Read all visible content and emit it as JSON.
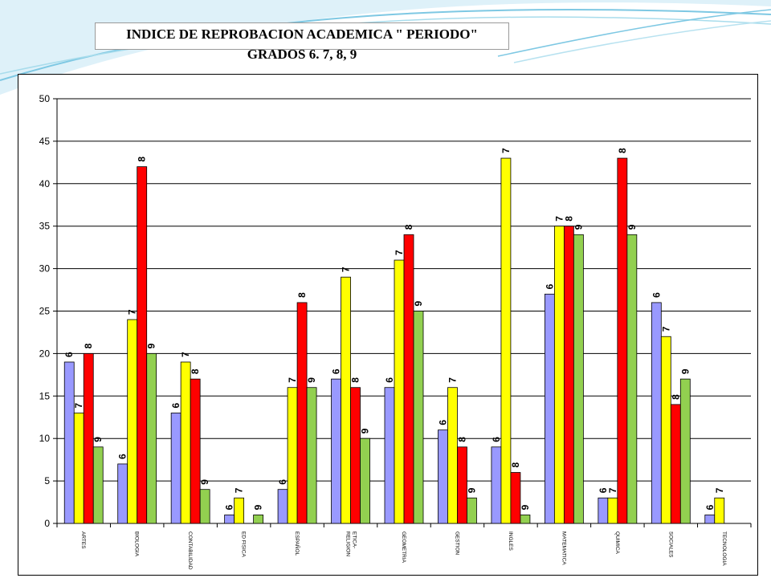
{
  "title": {
    "line1": "INDICE DE REPROBACION ACADEMICA \" PERIODO\"",
    "line2": "GRADOS 6. 7, 8, 9"
  },
  "colors": {
    "series": [
      "#9999ff",
      "#ffff00",
      "#ff0000",
      "#92d050"
    ],
    "decor": "#7ec8e3"
  },
  "chart_data": {
    "type": "bar",
    "title": "INDICE DE REPROBACION ACADEMICA \" PERIODO\" GRADOS 6. 7, 8, 9",
    "xlabel": "",
    "ylabel": "",
    "ylim": [
      0,
      50
    ],
    "yticks": [
      "0",
      "5",
      "10",
      "15",
      "20",
      "25",
      "30",
      "35",
      "40",
      "45",
      "50"
    ],
    "grid": true,
    "legend": "none",
    "categories": [
      [
        "ARTES"
      ],
      [
        "BIOLOGIA"
      ],
      [
        "CONTABILIDAD"
      ],
      [
        "ED FISICA"
      ],
      [
        "ESPAÑOL"
      ],
      [
        "ETICA-",
        "RELIGION"
      ],
      [
        "GEOMETRIA"
      ],
      [
        "GESTION"
      ],
      [
        "INGLES"
      ],
      [
        "MATEMATICA"
      ],
      [
        "QUIMICA"
      ],
      [
        "SOCIALES"
      ],
      [
        "TECNOLOGIA"
      ]
    ],
    "series": [
      {
        "label": "6",
        "values": [
          19,
          7,
          13,
          1,
          4,
          17,
          16,
          11,
          9,
          27,
          3,
          26,
          1
        ]
      },
      {
        "label": "7",
        "values": [
          13,
          24,
          19,
          3,
          16,
          29,
          31,
          16,
          43,
          35,
          3,
          22,
          3
        ]
      },
      {
        "label": "8",
        "values": [
          20,
          42,
          17,
          null,
          26,
          16,
          34,
          9,
          6,
          35,
          43,
          14,
          null
        ]
      },
      {
        "label": "9",
        "values": [
          9,
          20,
          4,
          1,
          16,
          10,
          25,
          3,
          1,
          34,
          34,
          17,
          null
        ]
      }
    ]
  }
}
